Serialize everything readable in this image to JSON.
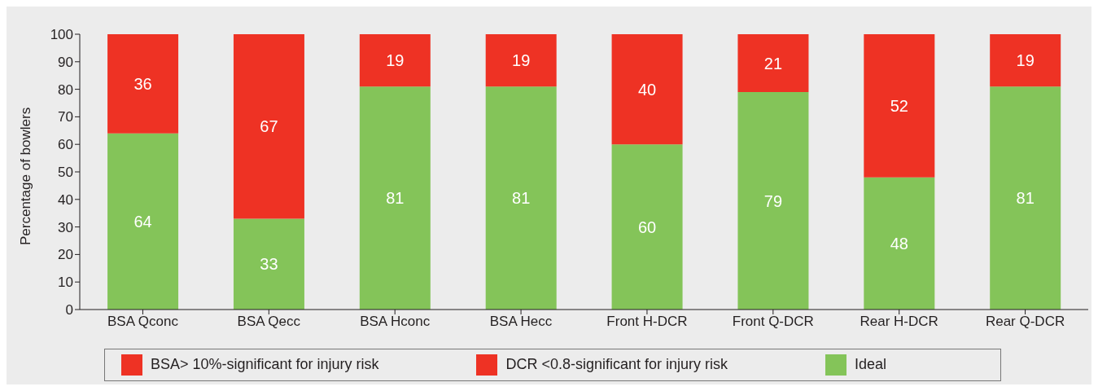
{
  "chart_data": {
    "type": "bar",
    "stacked": true,
    "ylabel": "Percentage of bowlers",
    "categories": [
      "BSA Qconc",
      "BSA Qecc",
      "BSA Hconc",
      "BSA Hecc",
      "Front H-DCR",
      "Front Q-DCR",
      "Rear H-DCR",
      "Rear Q-DCR"
    ],
    "series": [
      {
        "name": "Ideal",
        "color": "#84c459",
        "values": [
          64,
          33,
          81,
          81,
          60,
          79,
          48,
          81
        ]
      },
      {
        "name": "BSA> 10%-significant for injury risk",
        "color": "#ee3224",
        "values": [
          36,
          67,
          19,
          19,
          null,
          null,
          null,
          null
        ]
      },
      {
        "name": "DCR <0.8-significant for injury risk",
        "color": "#ee3224",
        "values": [
          null,
          null,
          null,
          null,
          40,
          21,
          52,
          19
        ]
      }
    ],
    "ylim": [
      0,
      100
    ],
    "yticks": [
      0,
      10,
      20,
      30,
      40,
      50,
      60,
      70,
      80,
      90,
      100
    ],
    "grid": false,
    "legend": "bottom",
    "data_labels": true
  }
}
